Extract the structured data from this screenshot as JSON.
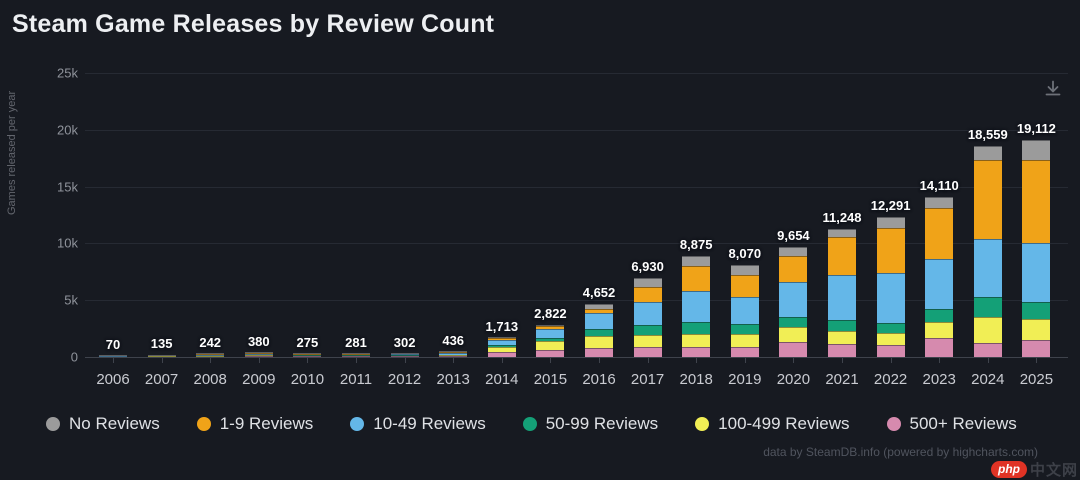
{
  "page": {
    "title": "Steam Game Releases by Review Count",
    "credits": "data by SteamDB.info (powered by highcharts.com)",
    "watermark": {
      "logo": "php",
      "text": "中文网"
    }
  },
  "chart_data": {
    "type": "bar",
    "stacked": true,
    "title": "Steam Game Releases by Review Count",
    "xlabel": "",
    "ylabel": "Games released per year",
    "ylim": [
      0,
      25000
    ],
    "grid": true,
    "legend_position": "bottom",
    "stack_order": "last series at bottom (500+ Reviews), first series on top (No Reviews)",
    "yticks": [
      {
        "value": 0,
        "label": "0"
      },
      {
        "value": 5000,
        "label": "5k"
      },
      {
        "value": 10000,
        "label": "10k"
      },
      {
        "value": 15000,
        "label": "15k"
      },
      {
        "value": 20000,
        "label": "20k"
      },
      {
        "value": 25000,
        "label": "25k"
      }
    ],
    "categories": [
      "2006",
      "2007",
      "2008",
      "2009",
      "2010",
      "2011",
      "2012",
      "2013",
      "2014",
      "2015",
      "2016",
      "2017",
      "2018",
      "2019",
      "2020",
      "2021",
      "2022",
      "2023",
      "2024",
      "2025"
    ],
    "totals": [
      70,
      135,
      242,
      380,
      275,
      281,
      302,
      436,
      1713,
      2822,
      4652,
      6930,
      8875,
      8070,
      9654,
      11248,
      12291,
      14110,
      18559,
      19112
    ],
    "totals_formatted": [
      "70",
      "135",
      "242",
      "380",
      "275",
      "281",
      "302",
      "436",
      "1,713",
      "2,822",
      "4,652",
      "6,930",
      "8,875",
      "8,070",
      "9,654",
      "11,248",
      "12,291",
      "14,110",
      "18,559",
      "19,112"
    ],
    "series": [
      {
        "name": "No Reviews",
        "color": "#9b9b9b",
        "values": [
          5,
          10,
          15,
          30,
          20,
          20,
          22,
          30,
          60,
          90,
          450,
          800,
          900,
          890,
          800,
          710,
          900,
          980,
          1250,
          1790
        ]
      },
      {
        "name": "1-9 Reviews",
        "color": "#f0a318",
        "values": [
          10,
          20,
          35,
          60,
          40,
          42,
          45,
          65,
          150,
          280,
          300,
          1250,
          2150,
          1880,
          2230,
          3300,
          4000,
          4470,
          6880,
          7320
        ]
      },
      {
        "name": "10-49 Reviews",
        "color": "#64b7e8",
        "values": [
          20,
          40,
          70,
          110,
          80,
          82,
          88,
          125,
          420,
          800,
          1450,
          2050,
          2770,
          2410,
          3130,
          4020,
          4400,
          4470,
          5180,
          5180
        ]
      },
      {
        "name": "50-99 Reviews",
        "color": "#14a077",
        "values": [
          10,
          20,
          30,
          45,
          35,
          35,
          38,
          55,
          180,
          280,
          600,
          890,
          1070,
          890,
          890,
          890,
          900,
          1070,
          1700,
          1520
        ]
      },
      {
        "name": "100-499 Reviews",
        "color": "#f1ee55",
        "values": [
          15,
          25,
          52,
          75,
          55,
          57,
          60,
          86,
          500,
          740,
          1100,
          1070,
          1090,
          1160,
          1250,
          1160,
          1050,
          1430,
          2300,
          1790
        ]
      },
      {
        "name": "500+ Reviews",
        "color": "#d68aae",
        "values": [
          10,
          20,
          40,
          60,
          45,
          45,
          49,
          75,
          403,
          632,
          752,
          870,
          895,
          840,
          1354,
          1168,
          1041,
          1690,
          1249,
          1512
        ]
      }
    ]
  }
}
